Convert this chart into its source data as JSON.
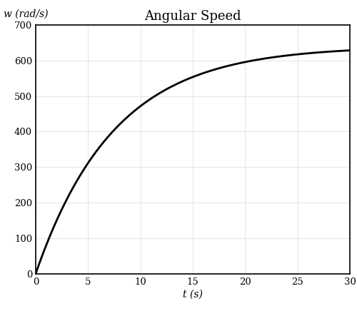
{
  "title": "Angular Speed",
  "xlabel": "t (s)",
  "ylabel": "w (rad/s)",
  "xlim": [
    0,
    30
  ],
  "ylim": [
    0,
    700
  ],
  "xticks": [
    0,
    5,
    10,
    15,
    20,
    25,
    30
  ],
  "yticks": [
    0,
    100,
    200,
    300,
    400,
    500,
    600,
    700
  ],
  "steady_state": 640,
  "time_constant": 7.5,
  "line_color": "#000000",
  "line_width": 2.0,
  "grid_color": "#999999",
  "background_color": "#ffffff",
  "title_fontsize": 13,
  "label_fontsize": 10,
  "tick_fontsize": 9.5
}
